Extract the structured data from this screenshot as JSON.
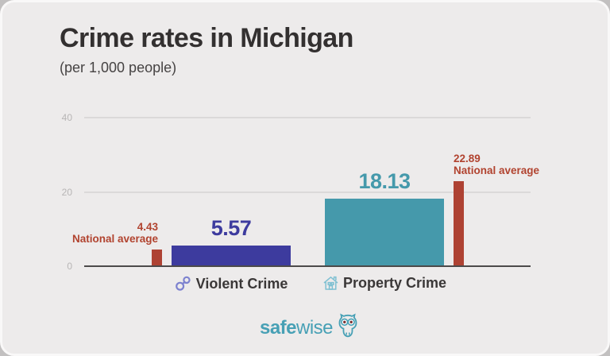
{
  "header": {
    "title": "Crime rates in Michigan",
    "subtitle": "(per 1,000 people)"
  },
  "chart_data": {
    "type": "bar",
    "title": "Crime rates in Michigan",
    "subtitle": "(per 1,000 people)",
    "xlabel": "",
    "ylabel": "",
    "ylim": [
      0,
      40
    ],
    "yticks": [
      0,
      20,
      40
    ],
    "grid": "horizontal",
    "legend_position": "none",
    "categories": [
      "Violent Crime",
      "Property Crime"
    ],
    "category_icons": [
      "handcuffs-icon",
      "house-icon"
    ],
    "series": [
      {
        "name": "Michigan",
        "values": [
          5.57,
          18.13
        ]
      },
      {
        "name": "National average",
        "values": [
          4.43,
          22.89
        ]
      }
    ],
    "value_labels": [
      "5.57",
      "18.13"
    ],
    "national_average_labels": [
      "4.43",
      "22.89"
    ],
    "national_average_caption": "National average",
    "colors": {
      "violent_bar": "#3d3b9e",
      "property_bar": "#4599ab",
      "national_average_bar": "#ae4233",
      "annotation_text": "#b1432f",
      "grid_line": "#dbd9d9",
      "axis_line": "#4c4a4a",
      "tick_text": "#b7b5b5",
      "category_text": "#3a3737",
      "handcuffs_icon": "#7d82cf",
      "house_icon": "#7fc0d2"
    }
  },
  "footer": {
    "brand_bold": "safe",
    "brand_regular": "wise",
    "owl_icon": "owl-icon",
    "brand_color": "#47a0b5"
  }
}
